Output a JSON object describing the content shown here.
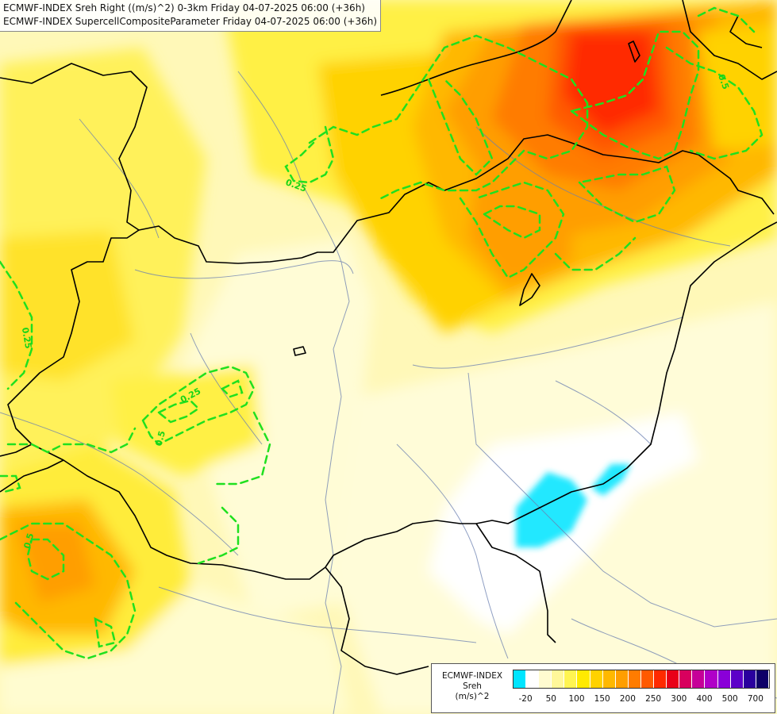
{
  "header": {
    "line1": "ECMWF-INDEX Sreh Right ((m/s)^2) 0-3km Friday 04-07-2025 06:00 (+36h)",
    "line2": "ECMWF-INDEX SupercellCompositeParameter Friday 04-07-2025 06:00 (+36h)"
  },
  "contour_labels": {
    "north": "0.25",
    "west": "0.25",
    "center": "0.25",
    "southwest": "0.5",
    "northeast": "0.5",
    "center_small": "0.5"
  },
  "legend": {
    "line1": "ECMWF-INDEX",
    "line2": "Sreh",
    "line3": "(m/s)^2",
    "colors": [
      "#00e5ff",
      "#ffffff",
      "#fffbd0",
      "#fff79a",
      "#fff451",
      "#ffea00",
      "#ffd200",
      "#ffb800",
      "#ff9e00",
      "#ff7c00",
      "#ff5a00",
      "#ff2a00",
      "#e80018",
      "#d8005e",
      "#c60098",
      "#b000c8",
      "#8a00d8",
      "#5c00c8",
      "#2a009e",
      "#0e0068"
    ],
    "ticks": [
      {
        "label": "-20",
        "index": 1
      },
      {
        "label": "50",
        "index": 3
      },
      {
        "label": "100",
        "index": 5
      },
      {
        "label": "150",
        "index": 7
      },
      {
        "label": "200",
        "index": 9
      },
      {
        "label": "250",
        "index": 11
      },
      {
        "label": "300",
        "index": 13
      },
      {
        "label": "400",
        "index": 15
      },
      {
        "label": "500",
        "index": 17
      },
      {
        "label": "700",
        "index": 19
      }
    ]
  }
}
